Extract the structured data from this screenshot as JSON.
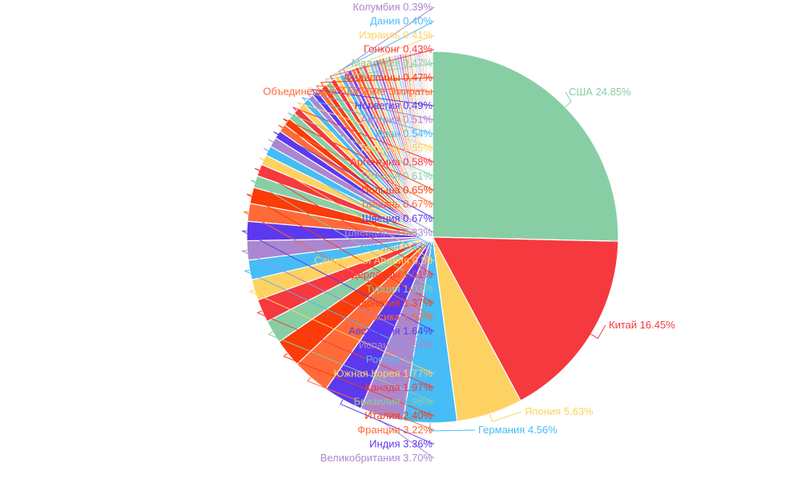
{
  "chart_data": {
    "type": "pie",
    "title": "",
    "categories": [
      "США",
      "Китай",
      "Япония",
      "Германия",
      "Великобритания",
      "Индия",
      "Франция",
      "Италия",
      "Бразилия",
      "Канада",
      "Южная Корея",
      "Россия",
      "Испания",
      "Австралия",
      "Мексика",
      "Индонезия",
      "Турция",
      "Нидерланды",
      "Саудовская Аравия",
      "Нигерия",
      "Швейцария",
      "Швеция",
      "Тайвань",
      "Польша",
      "Бельгия",
      "Аргентина",
      "Таиланд",
      "Иран",
      "Австрия",
      "Норвегия",
      "Объединённые Арабские Эмираты",
      "Филиппины",
      "Малайзия",
      "Гонконг",
      "Израиль",
      "Дания",
      "Колумбия"
    ],
    "values": [
      24.85,
      16.45,
      5.63,
      4.56,
      3.7,
      3.36,
      3.22,
      2.4,
      1.98,
      1.97,
      1.77,
      1.67,
      1.64,
      1.64,
      1.52,
      1.37,
      1.03,
      1.01,
      0.86,
      0.84,
      0.83,
      0.67,
      0.67,
      0.65,
      0.61,
      0.58,
      0.55,
      0.54,
      0.51,
      0.49,
      0.45,
      0.47,
      0.47,
      0.43,
      0.41,
      0.4,
      0.39
    ],
    "labels": [
      "США 24.85%",
      "Китай 16.45%",
      "Япония 5.63%",
      "Германия 4.56%",
      "Великобритания 3.70%",
      "Индия 3.36%",
      "Франция 3.22%",
      "Италия 2.40%",
      "Бразилия 1.98%",
      "Канада 1.97%",
      "Южная Корея 1.77%",
      "Россия 1.67%",
      "Испания 1.64%",
      "Австралия 1.64%",
      "Мексика 1.52%",
      "Индонезия 1.37%",
      "Турция 1.03%",
      "Нидерланды 1.01%",
      "Саудовская Аравия 0.86",
      "Нигерия 0.84%",
      "Швейцария 0.83%",
      "Швеция 0.67%",
      "Тайвань 0.67%",
      "Польша 0.65%",
      "Бельгия 0.61%",
      "Аргентина 0.58%",
      "Таиланд 0.55%",
      "Иран 0.54%",
      "Австрия 0.51%",
      "Норвегия 0.49%",
      "Объединённые Арабские Эмираты",
      "Филиппины 0.47%",
      "Малайзия 0.47%",
      "Гонконг 0.43%",
      "Израиль 0.41%",
      "Дания 0.40%",
      "Колумбия 0.39%"
    ],
    "remaining_unlabeled_slices": 33,
    "colors": [
      "#88cea5",
      "#f5393f",
      "#fed262",
      "#47bcf7",
      "#ab87cf",
      "#5c38ef",
      "#ff6a38",
      "#fb3b08"
    ],
    "legend": "none"
  }
}
